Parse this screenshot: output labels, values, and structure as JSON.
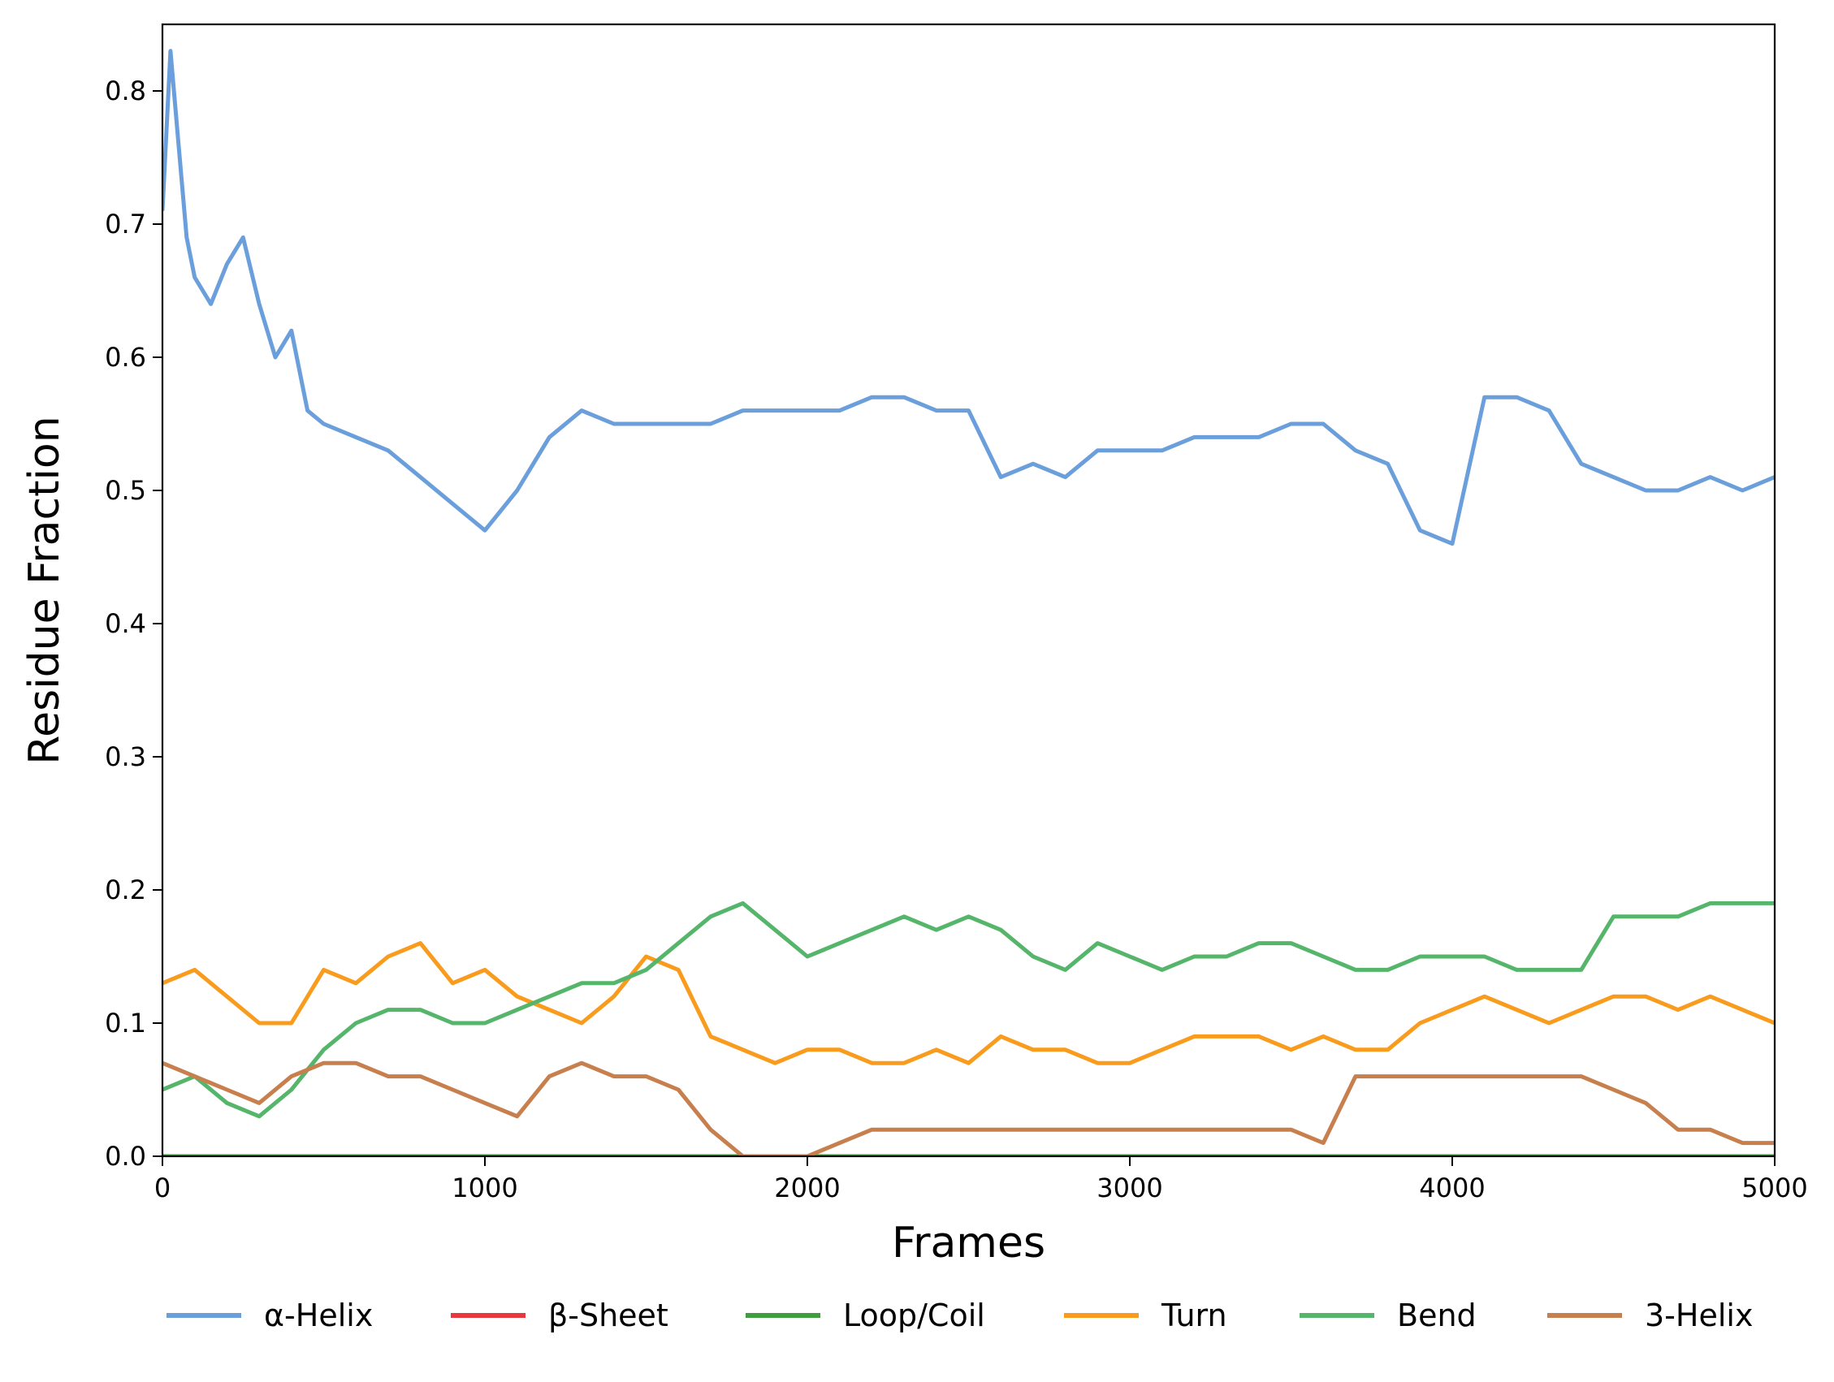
{
  "chart_data": {
    "type": "line",
    "title": "",
    "xlabel": "Frames",
    "ylabel": "Residue Fraction",
    "xlim": [
      0,
      5000
    ],
    "ylim": [
      0,
      0.85
    ],
    "xticks": [
      0,
      1000,
      2000,
      3000,
      4000,
      5000
    ],
    "yticks": [
      0.0,
      0.1,
      0.2,
      0.3,
      0.4,
      0.5,
      0.6,
      0.7,
      0.8
    ],
    "xtick_labels": [
      "0",
      "1000",
      "2000",
      "3000",
      "4000",
      "5000"
    ],
    "ytick_labels": [
      "0.0",
      "0.1",
      "0.2",
      "0.3",
      "0.4",
      "0.5",
      "0.6",
      "0.7",
      "0.8"
    ],
    "grid": false,
    "legend_position": "bottom",
    "series": [
      {
        "name": "α-Helix",
        "color": "#6a9fdc",
        "x": [
          0,
          25,
          50,
          75,
          100,
          150,
          200,
          250,
          300,
          350,
          400,
          450,
          500,
          600,
          700,
          800,
          900,
          1000,
          1100,
          1200,
          1300,
          1400,
          1500,
          1600,
          1700,
          1800,
          1900,
          2000,
          2100,
          2200,
          2300,
          2400,
          2500,
          2600,
          2700,
          2800,
          2900,
          3000,
          3100,
          3200,
          3300,
          3400,
          3500,
          3600,
          3700,
          3800,
          3900,
          4000,
          4100,
          4200,
          4300,
          4400,
          4500,
          4600,
          4700,
          4800,
          4900,
          5000
        ],
        "y": [
          0.71,
          0.83,
          0.76,
          0.69,
          0.66,
          0.64,
          0.67,
          0.69,
          0.64,
          0.6,
          0.62,
          0.56,
          0.55,
          0.54,
          0.53,
          0.51,
          0.49,
          0.47,
          0.5,
          0.54,
          0.56,
          0.55,
          0.55,
          0.55,
          0.55,
          0.56,
          0.56,
          0.56,
          0.56,
          0.57,
          0.57,
          0.56,
          0.56,
          0.51,
          0.52,
          0.51,
          0.53,
          0.53,
          0.53,
          0.54,
          0.54,
          0.54,
          0.55,
          0.55,
          0.53,
          0.52,
          0.47,
          0.46,
          0.57,
          0.57,
          0.56,
          0.52,
          0.51,
          0.5,
          0.5,
          0.51,
          0.5,
          0.51
        ]
      },
      {
        "name": "β-Sheet",
        "color": "#e8383d",
        "x": [
          0,
          5000
        ],
        "y": [
          0.0,
          0.0
        ]
      },
      {
        "name": "Loop/Coil",
        "color": "#3e9e3f",
        "x": [
          0,
          5000
        ],
        "y": [
          0.0,
          0.0
        ]
      },
      {
        "name": "Turn",
        "color": "#f99b1c",
        "x": [
          0,
          100,
          200,
          300,
          400,
          500,
          600,
          700,
          800,
          900,
          1000,
          1100,
          1200,
          1300,
          1400,
          1500,
          1600,
          1700,
          1800,
          1900,
          2000,
          2100,
          2200,
          2300,
          2400,
          2500,
          2600,
          2700,
          2800,
          2900,
          3000,
          3100,
          3200,
          3300,
          3400,
          3500,
          3600,
          3700,
          3800,
          3900,
          4000,
          4100,
          4200,
          4300,
          4400,
          4500,
          4600,
          4700,
          4800,
          4900,
          5000
        ],
        "y": [
          0.13,
          0.14,
          0.12,
          0.1,
          0.1,
          0.14,
          0.13,
          0.15,
          0.16,
          0.13,
          0.14,
          0.12,
          0.11,
          0.1,
          0.12,
          0.15,
          0.14,
          0.09,
          0.08,
          0.07,
          0.08,
          0.08,
          0.07,
          0.07,
          0.08,
          0.07,
          0.09,
          0.08,
          0.08,
          0.07,
          0.07,
          0.08,
          0.09,
          0.09,
          0.09,
          0.08,
          0.09,
          0.08,
          0.08,
          0.1,
          0.11,
          0.12,
          0.11,
          0.1,
          0.11,
          0.12,
          0.12,
          0.11,
          0.12,
          0.11,
          0.1
        ]
      },
      {
        "name": "Bend",
        "color": "#55b56a",
        "x": [
          0,
          100,
          200,
          300,
          400,
          500,
          600,
          700,
          800,
          900,
          1000,
          1100,
          1200,
          1300,
          1400,
          1500,
          1600,
          1700,
          1800,
          1900,
          2000,
          2100,
          2200,
          2300,
          2400,
          2500,
          2600,
          2700,
          2800,
          2900,
          3000,
          3100,
          3200,
          3300,
          3400,
          3500,
          3600,
          3700,
          3800,
          3900,
          4000,
          4100,
          4200,
          4300,
          4400,
          4500,
          4600,
          4700,
          4800,
          4900,
          5000
        ],
        "y": [
          0.05,
          0.06,
          0.04,
          0.03,
          0.05,
          0.08,
          0.1,
          0.11,
          0.11,
          0.1,
          0.1,
          0.11,
          0.12,
          0.13,
          0.13,
          0.14,
          0.16,
          0.18,
          0.19,
          0.17,
          0.15,
          0.16,
          0.17,
          0.18,
          0.17,
          0.18,
          0.17,
          0.15,
          0.14,
          0.16,
          0.15,
          0.14,
          0.15,
          0.15,
          0.16,
          0.16,
          0.15,
          0.14,
          0.14,
          0.15,
          0.15,
          0.15,
          0.14,
          0.14,
          0.14,
          0.18,
          0.18,
          0.18,
          0.19,
          0.19,
          0.19
        ]
      },
      {
        "name": "3-Helix",
        "color": "#c87f4e",
        "x": [
          0,
          100,
          200,
          300,
          400,
          500,
          600,
          700,
          800,
          900,
          1000,
          1100,
          1200,
          1300,
          1400,
          1500,
          1600,
          1700,
          1800,
          1900,
          2000,
          2100,
          2200,
          2300,
          2400,
          2500,
          2600,
          2700,
          2800,
          2900,
          3000,
          3100,
          3200,
          3300,
          3400,
          3500,
          3600,
          3700,
          3800,
          3900,
          4000,
          4100,
          4200,
          4300,
          4400,
          4500,
          4600,
          4700,
          4800,
          4900,
          5000
        ],
        "y": [
          0.07,
          0.06,
          0.05,
          0.04,
          0.06,
          0.07,
          0.07,
          0.06,
          0.06,
          0.05,
          0.04,
          0.03,
          0.06,
          0.07,
          0.06,
          0.06,
          0.05,
          0.02,
          0.0,
          0.0,
          0.0,
          0.01,
          0.02,
          0.02,
          0.02,
          0.02,
          0.02,
          0.02,
          0.02,
          0.02,
          0.02,
          0.02,
          0.02,
          0.02,
          0.02,
          0.02,
          0.01,
          0.06,
          0.06,
          0.06,
          0.06,
          0.06,
          0.06,
          0.06,
          0.06,
          0.05,
          0.04,
          0.02,
          0.02,
          0.01,
          0.01
        ]
      }
    ]
  }
}
